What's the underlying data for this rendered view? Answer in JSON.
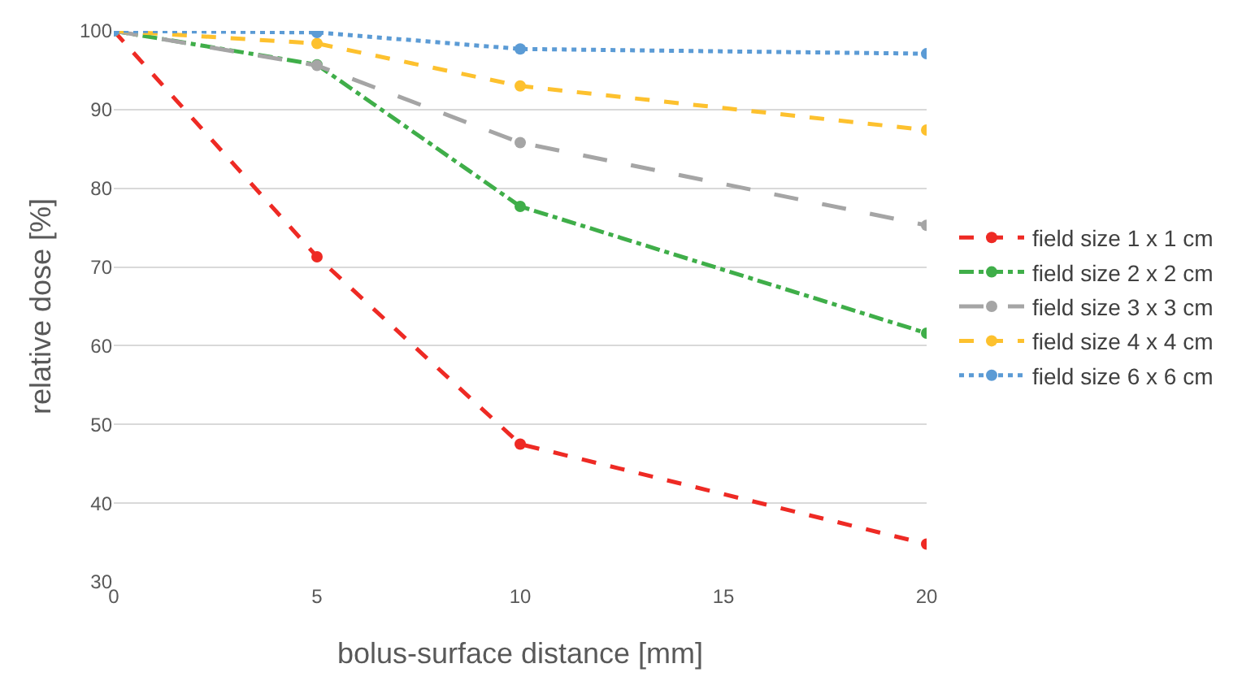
{
  "chart_data": {
    "type": "line",
    "xlabel": "bolus-surface distance [mm]",
    "ylabel": "relative dose [%]",
    "x": [
      0,
      5,
      10,
      20
    ],
    "xlim": [
      0,
      20
    ],
    "xticks": [
      0,
      5,
      10,
      15,
      20
    ],
    "ylim": [
      30,
      100
    ],
    "yticks": [
      30,
      40,
      50,
      60,
      70,
      80,
      90,
      100
    ],
    "grid": "y",
    "legend": "right",
    "marker": "circle",
    "series": [
      {
        "name": "field size 1 x 1 cm",
        "color": "#ee2a24",
        "line_style": "dashed",
        "values": [
          100,
          71.3,
          47.5,
          34.8
        ]
      },
      {
        "name": "field size 2 x 2 cm",
        "color": "#3fae49",
        "line_style": "dashdot",
        "values": [
          100,
          95.7,
          77.7,
          61.6
        ]
      },
      {
        "name": "field size 3 x 3 cm",
        "color": "#a5a5a5",
        "line_style": "longdash",
        "values": [
          100,
          95.6,
          85.8,
          75.3
        ]
      },
      {
        "name": "field size 4 x 4 cm",
        "color": "#fdc12e",
        "line_style": "dashed",
        "values": [
          100,
          98.4,
          93.0,
          87.4
        ]
      },
      {
        "name": "field size 6 x 6 cm",
        "color": "#5b9bd5",
        "line_style": "dotted",
        "values": [
          100,
          99.8,
          97.7,
          97.1
        ]
      }
    ]
  }
}
